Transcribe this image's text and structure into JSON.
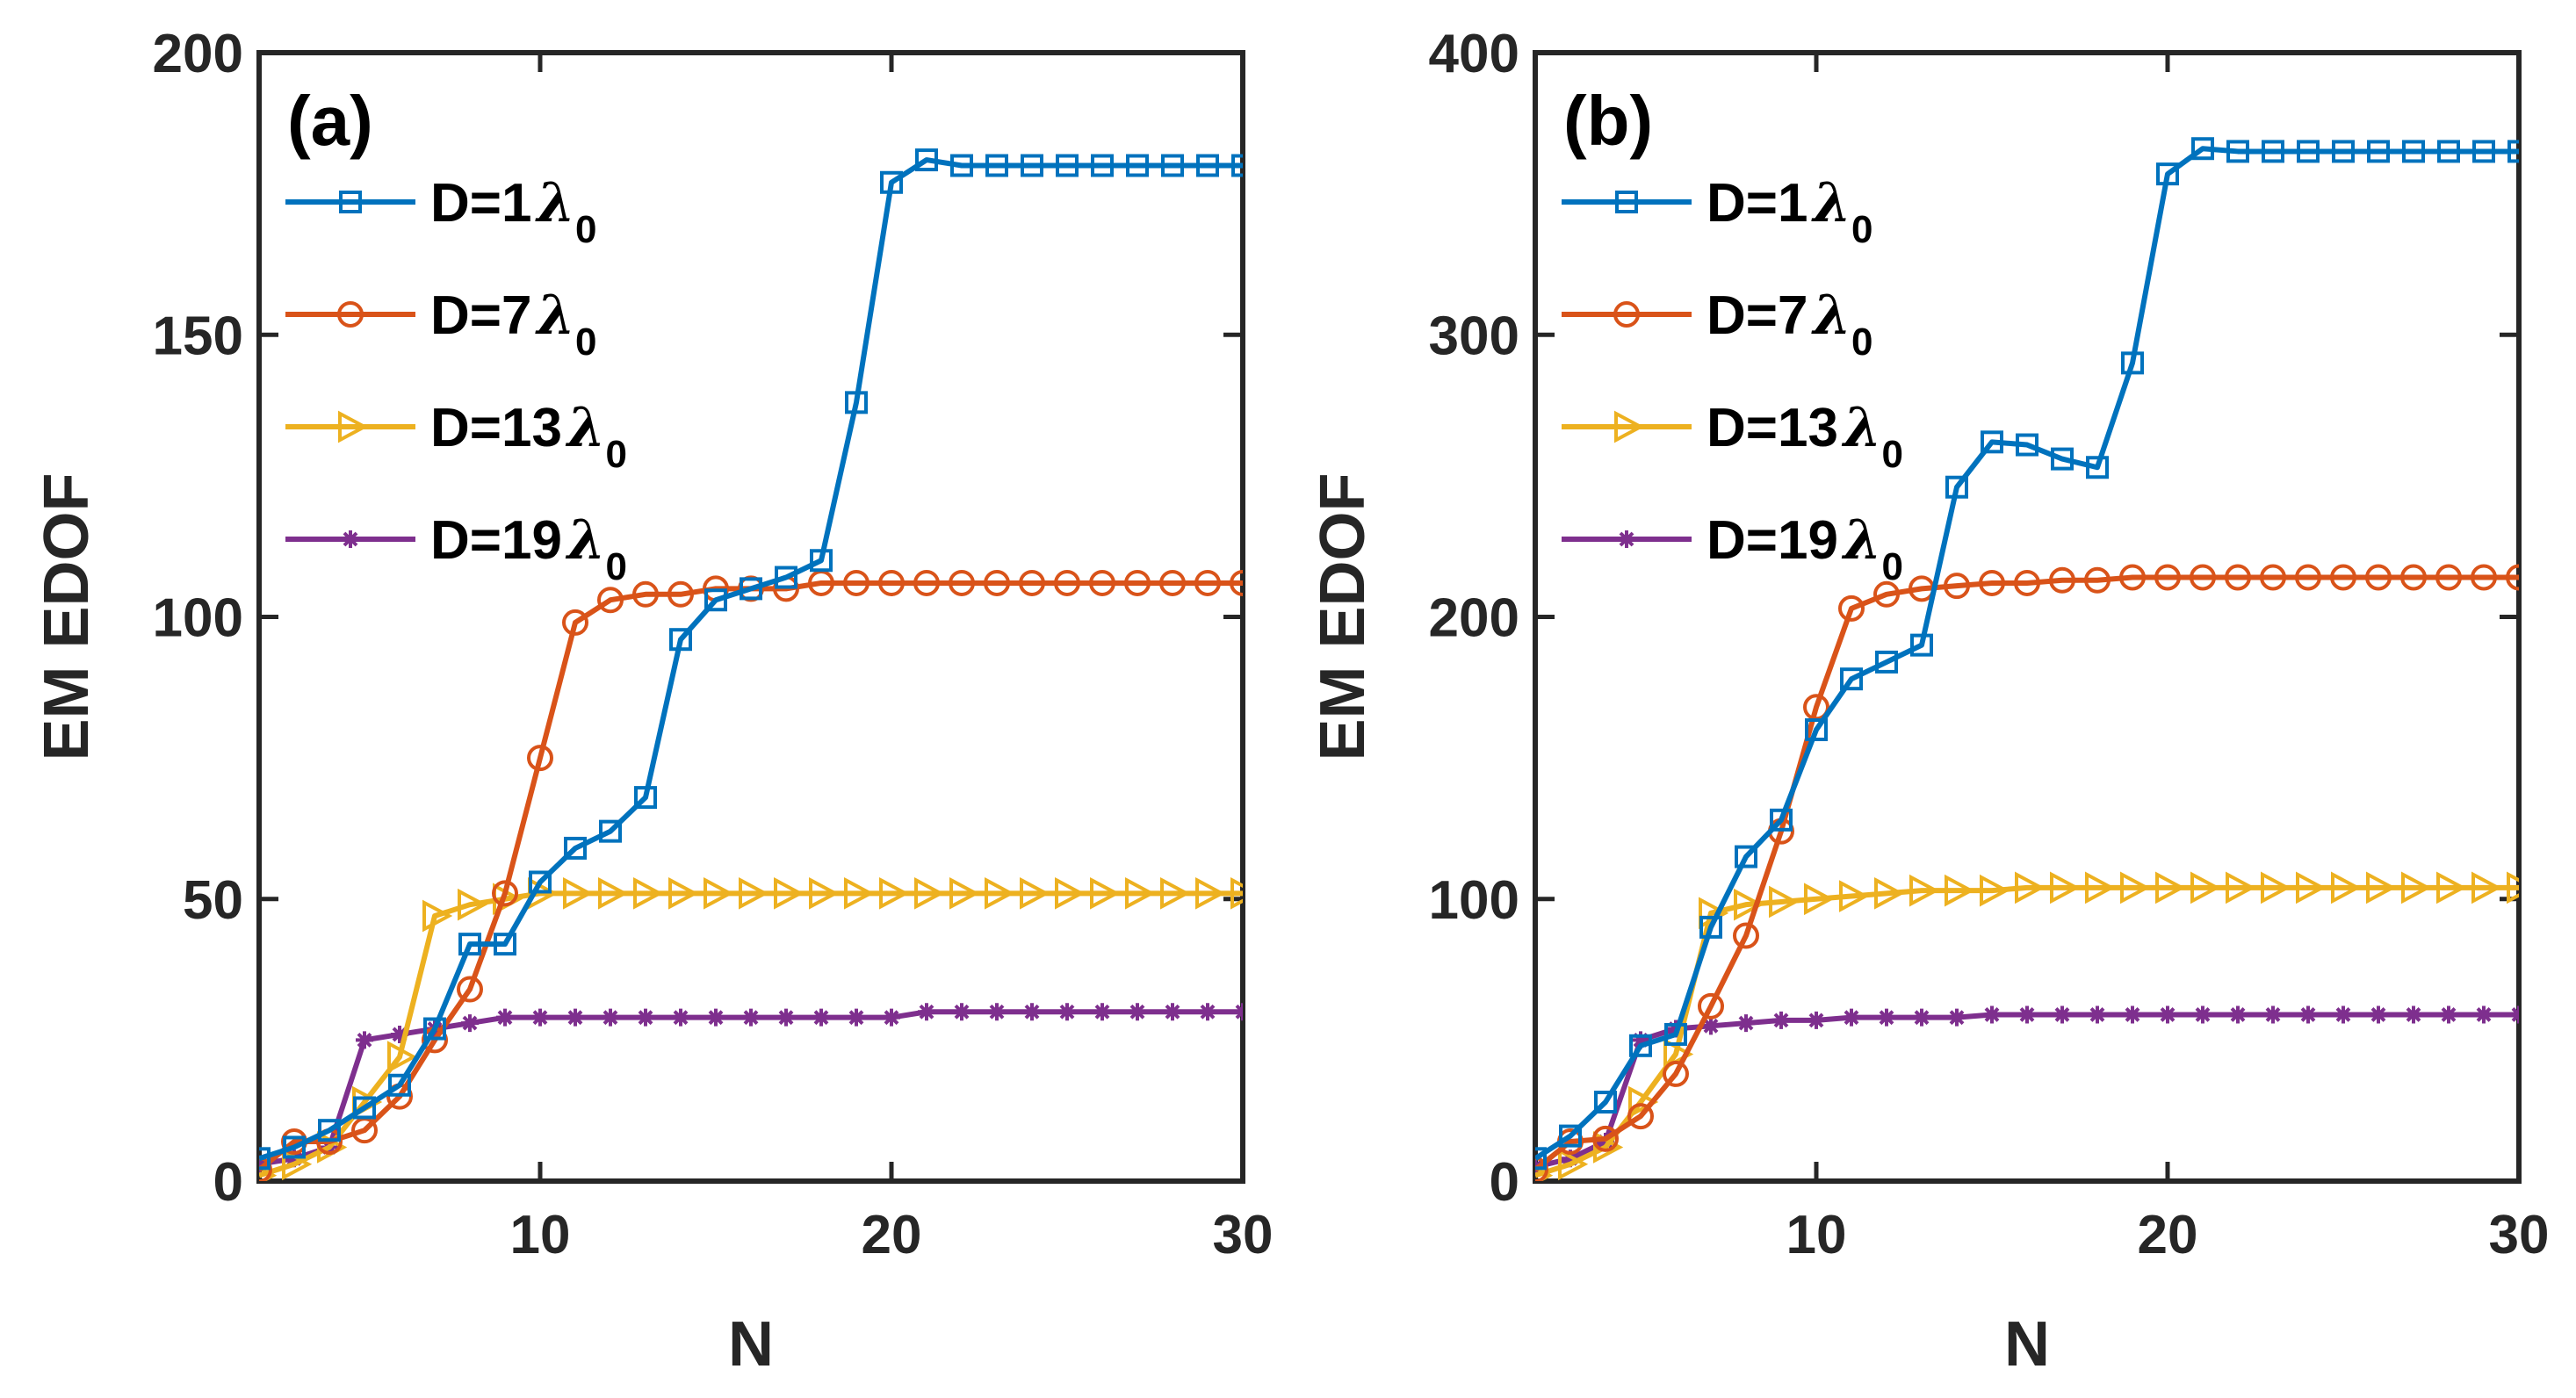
{
  "chart_data": [
    {
      "type": "line",
      "panel_label": "(a)",
      "xlabel": "N",
      "ylabel": "EM EDOF",
      "xlim": [
        2,
        30
      ],
      "ylim": [
        0,
        200
      ],
      "xticks": [
        10,
        20,
        30
      ],
      "yticks": [
        0,
        50,
        100,
        150,
        200
      ],
      "legend_position": "top-left",
      "x": [
        2,
        3,
        4,
        5,
        6,
        7,
        8,
        9,
        10,
        11,
        12,
        13,
        14,
        15,
        16,
        17,
        18,
        19,
        20,
        21,
        22,
        23,
        24,
        25,
        26,
        27,
        28,
        29,
        30
      ],
      "series": [
        {
          "name": "D=1",
          "symbol": "λ",
          "sub": "0",
          "color": "#0072BD",
          "marker": "square",
          "values": [
            4,
            6,
            9,
            13,
            17,
            27,
            42,
            42,
            53,
            59,
            62,
            68,
            96,
            103,
            105,
            107,
            110,
            138,
            177,
            181,
            180,
            180,
            180,
            180,
            180,
            180,
            180,
            180,
            180
          ]
        },
        {
          "name": "D=7",
          "symbol": "λ",
          "sub": "0",
          "color": "#D95319",
          "marker": "circle",
          "values": [
            2,
            7,
            7,
            9,
            15,
            25,
            34,
            51,
            75,
            99,
            103,
            104,
            104,
            105,
            105,
            105,
            106,
            106,
            106,
            106,
            106,
            106,
            106,
            106,
            106,
            106,
            106,
            106,
            106
          ]
        },
        {
          "name": "D=13",
          "symbol": "λ",
          "sub": "0",
          "color": "#EDB120",
          "marker": "triangle-right",
          "values": [
            1,
            3,
            6,
            14,
            22,
            47,
            49,
            50,
            51,
            51,
            51,
            51,
            51,
            51,
            51,
            51,
            51,
            51,
            51,
            51,
            51,
            51,
            51,
            51,
            51,
            51,
            51,
            51,
            51
          ]
        },
        {
          "name": "D=19",
          "symbol": "λ",
          "sub": "0",
          "color": "#7E2F8E",
          "marker": "asterisk",
          "values": [
            3,
            4,
            6,
            25,
            26,
            27,
            28,
            29,
            29,
            29,
            29,
            29,
            29,
            29,
            29,
            29,
            29,
            29,
            29,
            30,
            30,
            30,
            30,
            30,
            30,
            30,
            30,
            30,
            30
          ]
        }
      ]
    },
    {
      "type": "line",
      "panel_label": "(b)",
      "xlabel": "N",
      "ylabel": "EM EDOF",
      "xlim": [
        2,
        30
      ],
      "ylim": [
        0,
        400
      ],
      "xticks": [
        10,
        20,
        30
      ],
      "yticks": [
        0,
        100,
        200,
        300,
        400
      ],
      "legend_position": "top-left",
      "x": [
        2,
        3,
        4,
        5,
        6,
        7,
        8,
        9,
        10,
        11,
        12,
        13,
        14,
        15,
        16,
        17,
        18,
        19,
        20,
        21,
        22,
        23,
        24,
        25,
        26,
        27,
        28,
        29,
        30
      ],
      "series": [
        {
          "name": "D=1",
          "symbol": "λ",
          "sub": "0",
          "color": "#0072BD",
          "marker": "square",
          "values": [
            8,
            16,
            28,
            48,
            52,
            90,
            115,
            128,
            160,
            178,
            184,
            190,
            246,
            262,
            261,
            256,
            253,
            290,
            357,
            366,
            365,
            365,
            365,
            365,
            365,
            365,
            365,
            365,
            365
          ]
        },
        {
          "name": "D=7",
          "symbol": "λ",
          "sub": "0",
          "color": "#D95319",
          "marker": "circle",
          "values": [
            4,
            14,
            15,
            23,
            38,
            62,
            87,
            124,
            168,
            203,
            208,
            210,
            211,
            212,
            212,
            213,
            213,
            214,
            214,
            214,
            214,
            214,
            214,
            214,
            214,
            214,
            214,
            214,
            214
          ]
        },
        {
          "name": "D=13",
          "symbol": "λ",
          "sub": "0",
          "color": "#EDB120",
          "marker": "triangle-right",
          "values": [
            2,
            6,
            12,
            28,
            45,
            95,
            98,
            99,
            100,
            101,
            102,
            103,
            103,
            103,
            104,
            104,
            104,
            104,
            104,
            104,
            104,
            104,
            104,
            104,
            104,
            104,
            104,
            104,
            104
          ]
        },
        {
          "name": "D=19",
          "symbol": "λ",
          "sub": "0",
          "color": "#7E2F8E",
          "marker": "asterisk",
          "values": [
            5,
            8,
            14,
            50,
            54,
            55,
            56,
            57,
            57,
            58,
            58,
            58,
            58,
            59,
            59,
            59,
            59,
            59,
            59,
            59,
            59,
            59,
            59,
            59,
            59,
            59,
            59,
            59,
            59
          ]
        }
      ]
    }
  ]
}
